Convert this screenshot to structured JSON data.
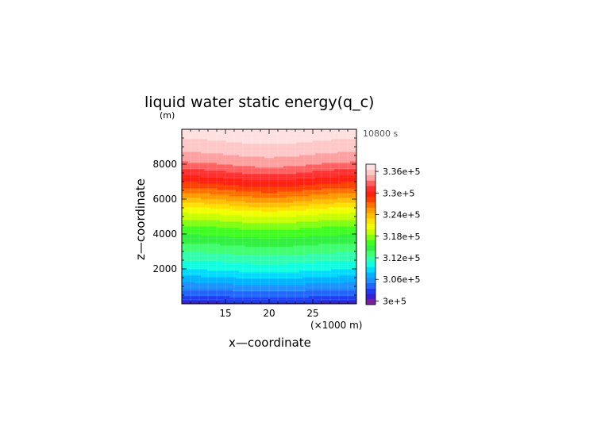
{
  "chart_data": {
    "type": "heatmap",
    "title": "liquid water static energy(q_c)",
    "y_unit": "(m)",
    "time_label": "10800 s",
    "xlabel": "x—coordinate",
    "x_unit": "(×1000 m)",
    "ylabel": "z—coordinate",
    "xlim": [
      10,
      30
    ],
    "ylim": [
      0,
      10000
    ],
    "x_ticks": [
      "15",
      "20",
      "25"
    ],
    "y_ticks": [
      "2000",
      "4000",
      "6000",
      "8000"
    ],
    "colorbar": {
      "min": 299000,
      "max": 338000,
      "step": 1500,
      "tick_labels": [
        "3e+5",
        "3.06e+5",
        "3.12e+5",
        "3.18e+5",
        "3.24e+5",
        "3.3e+5",
        "3.36e+5"
      ],
      "tick_values": [
        300000,
        306000,
        312000,
        318000,
        324000,
        330000,
        336000
      ],
      "colors": [
        "#7a1fa0",
        "#3a1fd0",
        "#1f3cf0",
        "#2266ff",
        "#1e90ff",
        "#00b4ff",
        "#00dcff",
        "#10ffe0",
        "#30ffb0",
        "#40ff70",
        "#30f040",
        "#40ff20",
        "#80ff10",
        "#c8ff00",
        "#f0ff00",
        "#ffe000",
        "#ffc000",
        "#ff9a00",
        "#ff7000",
        "#ff4000",
        "#ff2010",
        "#ff3030",
        "#ff6060",
        "#ffa0a0",
        "#ffc8c8",
        "#ffe0e0"
      ]
    },
    "profile": {
      "z": [
        0,
        500,
        1000,
        1500,
        2000,
        2500,
        3000,
        3500,
        4000,
        4500,
        5000,
        5500,
        6000,
        6500,
        7000,
        7500,
        8000,
        8500,
        9000,
        9500,
        10000
      ],
      "value": [
        301000,
        303500,
        305500,
        307500,
        309500,
        311000,
        312500,
        314000,
        315500,
        317000,
        319000,
        321000,
        324000,
        326500,
        329000,
        331000,
        333000,
        334500,
        335500,
        336500,
        337500
      ]
    }
  }
}
